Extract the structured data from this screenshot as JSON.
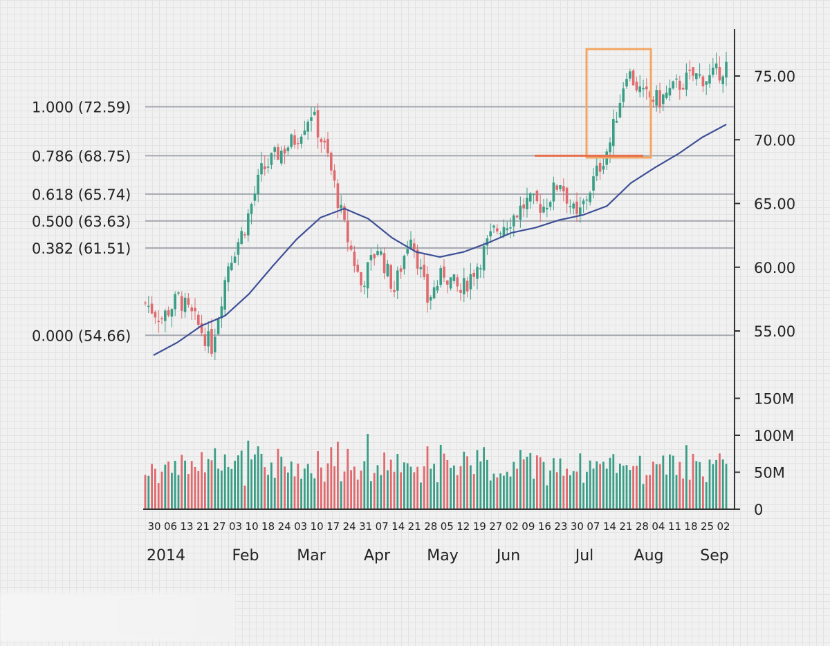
{
  "colors": {
    "up": "#3a9e87",
    "down": "#e06a6e",
    "ma": "#3d4f96",
    "fib_line": "#a5a7b0",
    "box": "#f2a560",
    "resistance": "#e5704f",
    "axis": "#333333"
  },
  "chart_data": {
    "type": "candlestick",
    "x_start_year": "2014",
    "x_day_ticks": [
      "30",
      "06",
      "13",
      "21",
      "27",
      "03",
      "10",
      "18",
      "24",
      "03",
      "10",
      "17",
      "24",
      "31",
      "07",
      "14",
      "21",
      "28",
      "05",
      "12",
      "19",
      "27",
      "02",
      "09",
      "16",
      "23",
      "30",
      "07",
      "14",
      "21",
      "28",
      "04",
      "11",
      "18",
      "25",
      "02"
    ],
    "x_month_labels": [
      "Feb",
      "Mar",
      "Apr",
      "May",
      "Jun",
      "Jul",
      "Aug",
      "Sep"
    ],
    "y_ticks": [
      "55.00",
      "60.00",
      "65.00",
      "70.00",
      "75.00"
    ],
    "y_values": [
      55,
      60,
      65,
      70,
      75
    ],
    "volume_ticks": [
      "0",
      "50M",
      "100M",
      "150M"
    ],
    "volume_values": [
      0,
      50,
      100,
      150
    ],
    "fibonacci_levels": [
      {
        "label": "1.000 (72.59)",
        "value": 72.59
      },
      {
        "label": "0.786 (68.75)",
        "value": 68.75
      },
      {
        "label": "0.618 (65.74)",
        "value": 65.74
      },
      {
        "label": "0.500 (63.63)",
        "value": 63.63
      },
      {
        "label": "0.382 (61.51)",
        "value": 61.51
      },
      {
        "label": "0.000 (54.66)",
        "value": 54.66
      }
    ],
    "weekly_close": [
      57.2,
      56.0,
      57.6,
      55.8,
      53.8,
      60.3,
      63.2,
      67.5,
      68.9,
      70.0,
      72.2,
      68.6,
      63.1,
      58.6,
      61.6,
      58.2,
      62.8,
      57.4,
      59.6,
      58.0,
      60.2,
      62.8,
      63.8,
      65.1,
      64.8,
      66.8,
      63.7,
      66.8,
      69.8,
      75.5,
      73.4,
      73.1,
      74.2,
      75.0,
      74.8,
      75.8
    ],
    "moving_average": [
      53.1,
      54.1,
      55.4,
      56.2,
      57.9,
      60.1,
      62.2,
      63.9,
      64.6,
      63.8,
      62.3,
      61.2,
      60.8,
      61.2,
      61.9,
      62.7,
      63.1,
      63.7,
      64.1,
      64.8,
      66.6,
      67.8,
      68.9,
      70.2,
      71.2
    ]
  }
}
